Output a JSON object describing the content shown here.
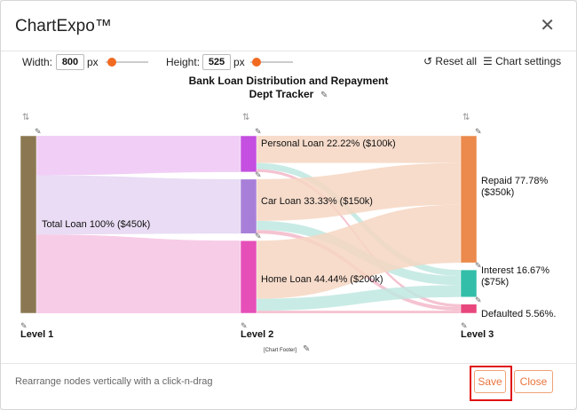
{
  "app": {
    "title": "ChartExpo™"
  },
  "toolbar": {
    "width_label": "Width:",
    "width_value": "800",
    "height_label": "Height:",
    "height_value": "525",
    "unit": "px",
    "reset_label": "Reset all",
    "settings_label": "Chart settings"
  },
  "chart_data": {
    "type": "sankey",
    "title_line1": "Bank Loan Distribution and Repayment",
    "title_line2": "Dept Tracker",
    "footer": "[Chart Footer]",
    "levels": [
      "Level 1",
      "Level 2",
      "Level 3"
    ],
    "nodes": [
      {
        "id": "total",
        "label": "Total Loan 100% ($450k)",
        "value": 450,
        "level": 0,
        "color": "#8b7852"
      },
      {
        "id": "personal",
        "label": "Personal Loan 22.22% ($100k)",
        "value": 100,
        "level": 1,
        "color": "#c44fe0"
      },
      {
        "id": "car",
        "label": "Car Loan 33.33% ($150k)",
        "value": 150,
        "level": 1,
        "color": "#a87fd8"
      },
      {
        "id": "home",
        "label": "Home Loan 44.44% ($200k)",
        "value": 200,
        "level": 1,
        "color": "#e64fb8"
      },
      {
        "id": "repaid",
        "label_line1": "Repaid 77.78%",
        "label_line2": "($350k)",
        "value": 350,
        "level": 2,
        "color": "#eb8a4c"
      },
      {
        "id": "interest",
        "label_line1": "Interest 16.67%",
        "label_line2": "($75k)",
        "value": 75,
        "level": 2,
        "color": "#33bea9"
      },
      {
        "id": "defaulted",
        "label_line1": "Defaulted 5.56%.",
        "label_line2": "",
        "value": 25,
        "level": 2,
        "color": "#e8477e"
      }
    ],
    "links": [
      {
        "source": "total",
        "target": "personal",
        "value": 100,
        "color": "#efc5f5"
      },
      {
        "source": "total",
        "target": "car",
        "value": 150,
        "color": "#e5d6f2"
      },
      {
        "source": "total",
        "target": "home",
        "value": 200,
        "color": "#f6c3e3"
      },
      {
        "source": "personal",
        "target": "repaid",
        "value": 75,
        "color": "#f6d6c2"
      },
      {
        "source": "personal",
        "target": "interest",
        "value": 17,
        "color": "#bfe8e0"
      },
      {
        "source": "personal",
        "target": "defaulted",
        "value": 8,
        "color": "#f3b9c9"
      },
      {
        "source": "car",
        "target": "repaid",
        "value": 115,
        "color": "#f6d6c2"
      },
      {
        "source": "car",
        "target": "interest",
        "value": 25,
        "color": "#bfe8e0"
      },
      {
        "source": "car",
        "target": "defaulted",
        "value": 10,
        "color": "#f3b9c9"
      },
      {
        "source": "home",
        "target": "repaid",
        "value": 160,
        "color": "#f6d6c2"
      },
      {
        "source": "home",
        "target": "interest",
        "value": 33,
        "color": "#bfe8e0"
      },
      {
        "source": "home",
        "target": "defaulted",
        "value": 7,
        "color": "#f3b9c9"
      }
    ]
  },
  "footer": {
    "hint": "Rearrange nodes vertically with a click-n-drag",
    "save_label": "Save",
    "close_label": "Close"
  },
  "colors": {
    "accent": "#f26a21",
    "highlight": "#e01010"
  }
}
